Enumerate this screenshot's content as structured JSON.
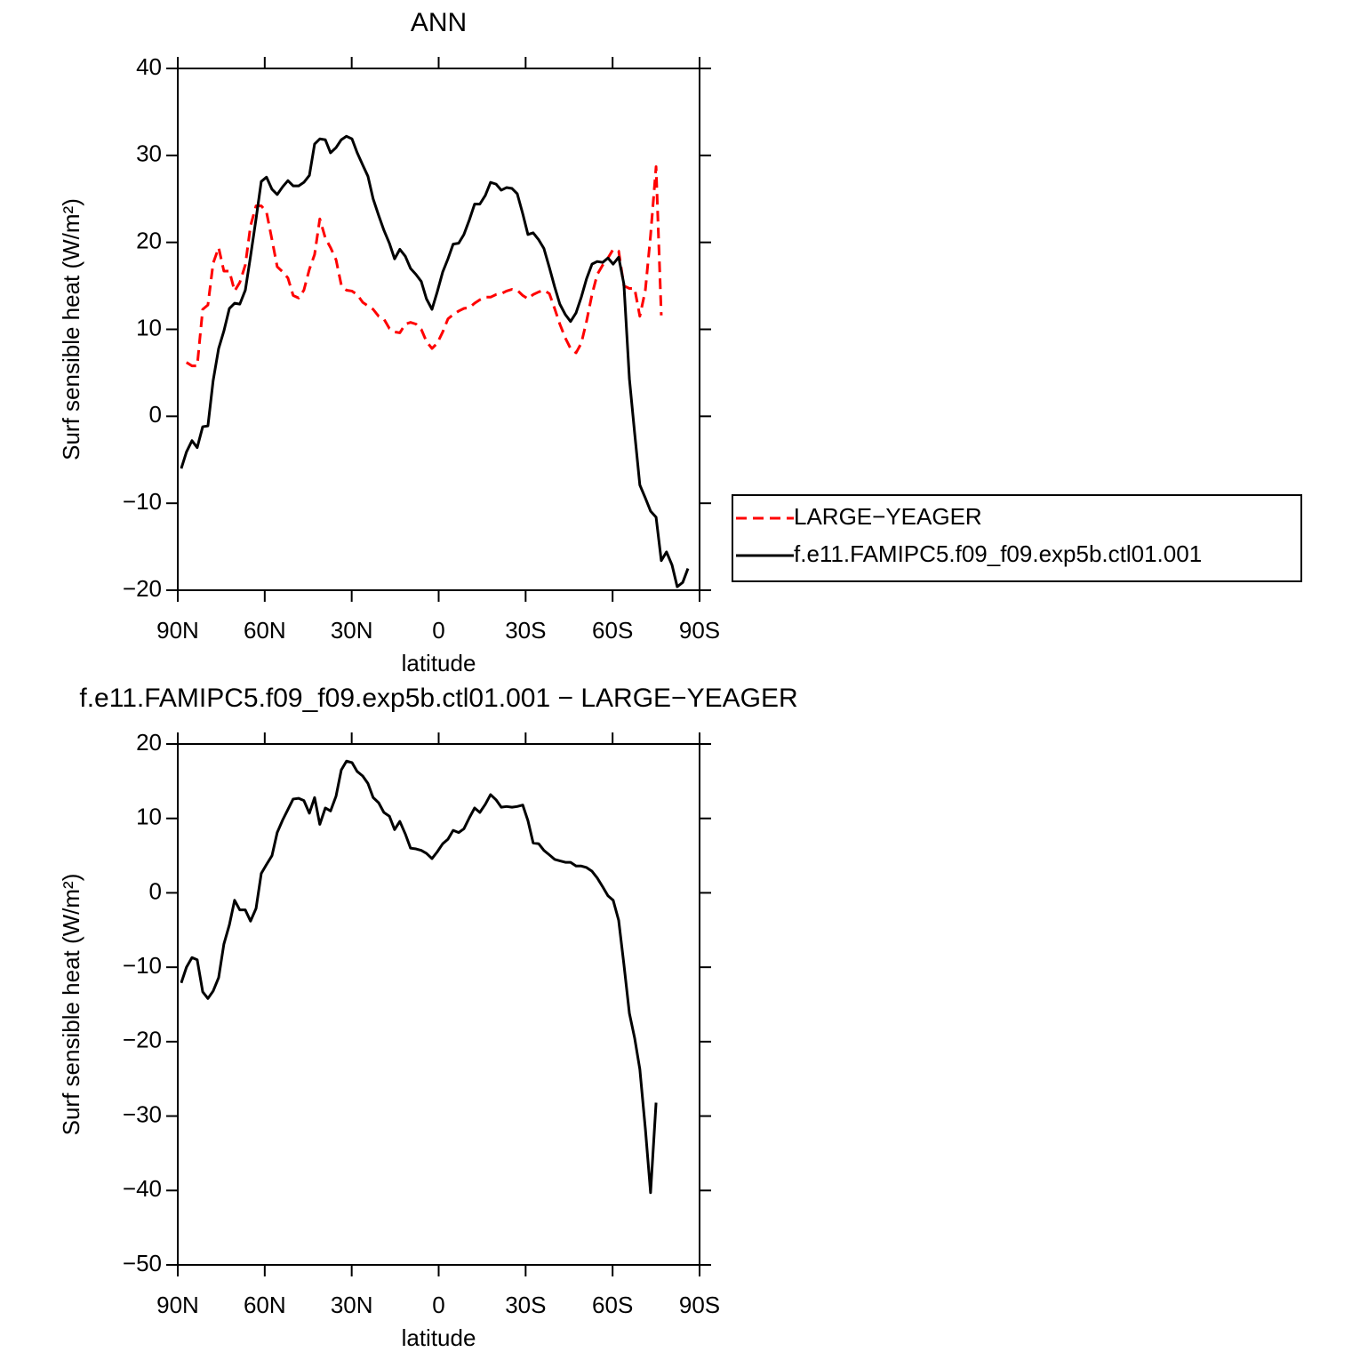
{
  "chart_data": [
    {
      "type": "line",
      "title": "ANN",
      "xlabel": "latitude",
      "ylabel": "Surf sensible heat (W/m²)",
      "legend": "right",
      "xlim": [
        90,
        -90
      ],
      "xticks": [
        {
          "value": 90,
          "label": "90N"
        },
        {
          "value": 60,
          "label": "60N"
        },
        {
          "value": 30,
          "label": "30N"
        },
        0,
        {
          "value": -30,
          "label": "30S"
        },
        {
          "value": -60,
          "label": "60S"
        },
        {
          "value": -90,
          "label": "90S"
        }
      ],
      "ylim": [
        -20,
        40
      ],
      "yticks": [
        40,
        30,
        20,
        10,
        0,
        {
          "value": -10,
          "label": "−10"
        },
        {
          "value": -20,
          "label": "−20"
        }
      ],
      "x": [
        88.8,
        87.0,
        85.1,
        83.3,
        81.4,
        79.6,
        77.8,
        75.9,
        74.1,
        72.2,
        70.4,
        68.6,
        66.7,
        64.9,
        63.0,
        61.2,
        59.4,
        57.5,
        55.7,
        53.8,
        52.0,
        50.2,
        48.3,
        46.5,
        44.6,
        42.8,
        41.0,
        39.1,
        37.3,
        35.4,
        33.6,
        31.8,
        29.9,
        28.1,
        26.2,
        24.4,
        22.6,
        20.7,
        18.9,
        17.0,
        15.2,
        13.4,
        11.5,
        9.7,
        7.8,
        6.0,
        4.2,
        2.3,
        0.5,
        -1.4,
        -3.2,
        -5.0,
        -6.9,
        -8.7,
        -10.6,
        -12.4,
        -14.2,
        -16.1,
        -17.9,
        -19.8,
        -21.6,
        -23.4,
        -25.3,
        -27.1,
        -29.0,
        -30.8,
        -32.6,
        -34.5,
        -36.3,
        -38.2,
        -40.0,
        -41.8,
        -43.7,
        -45.5,
        -47.4,
        -49.2,
        -51.0,
        -52.9,
        -54.7,
        -56.6,
        -58.4,
        -60.2,
        -62.1,
        -63.9,
        -65.8,
        -67.6,
        -69.4,
        -71.3,
        -73.1,
        -75.0,
        -76.8,
        -78.6,
        -80.5,
        -82.3,
        -84.2,
        -86.0
      ],
      "series": [
        {
          "name": "LARGE−YEAGER",
          "color": "#ff0000",
          "line_style": "dashed",
          "values": [
            null,
            6.2,
            5.8,
            5.8,
            12.3,
            12.8,
            17.6,
            19.4,
            16.7,
            16.7,
            14.4,
            15.4,
            17.4,
            21.9,
            24.2,
            24.2,
            23.5,
            20.3,
            17.2,
            16.6,
            15.9,
            13.9,
            13.6,
            14.5,
            16.9,
            18.6,
            22.7,
            20.5,
            19.4,
            18.0,
            15.1,
            14.5,
            14.4,
            14.0,
            13.1,
            12.7,
            12.3,
            11.5,
            11.2,
            10.1,
            9.7,
            9.6,
            10.6,
            10.8,
            10.6,
            10.0,
            8.6,
            7.8,
            8.4,
            9.7,
            11.2,
            11.7,
            12.1,
            12.4,
            12.5,
            13.0,
            13.4,
            13.7,
            13.7,
            14.0,
            14.1,
            14.4,
            14.6,
            14.5,
            13.9,
            13.5,
            14.0,
            14.3,
            14.5,
            14.1,
            12.4,
            10.6,
            9.0,
            7.8,
            7.3,
            8.4,
            10.9,
            14.0,
            16.3,
            17.4,
            18.2,
            19.2,
            19.0,
            15.0,
            14.7,
            14.7,
            11.5,
            14.5,
            20.8,
            28.7,
            11.6,
            null,
            null,
            null,
            null,
            null
          ]
        },
        {
          "name": "f.e11.FAMIPC5.f09_f09.exp5b.ctl01.001",
          "color": "#000000",
          "line_style": "solid",
          "values": [
            -6.0,
            -4.1,
            -2.8,
            -3.6,
            -1.2,
            -1.1,
            4.1,
            7.8,
            9.8,
            12.4,
            13.0,
            12.9,
            14.5,
            18.4,
            22.7,
            27.0,
            27.5,
            26.1,
            25.5,
            26.4,
            27.1,
            26.5,
            26.5,
            26.9,
            27.7,
            31.3,
            31.9,
            31.8,
            30.3,
            30.9,
            31.8,
            32.2,
            31.9,
            30.3,
            28.9,
            27.6,
            25.0,
            23.1,
            21.4,
            19.9,
            18.1,
            19.2,
            18.4,
            17.0,
            16.3,
            15.5,
            13.5,
            12.3,
            14.3,
            16.6,
            18.1,
            19.8,
            19.9,
            20.9,
            22.6,
            24.4,
            24.4,
            25.4,
            26.9,
            26.7,
            26.0,
            26.3,
            26.2,
            25.6,
            23.3,
            20.9,
            21.1,
            20.3,
            19.3,
            17.1,
            14.9,
            12.9,
            11.7,
            10.9,
            11.9,
            13.7,
            15.8,
            17.5,
            17.8,
            17.7,
            18.2,
            17.5,
            18.3,
            15.2,
            4.3,
            -1.9,
            -7.9,
            -9.4,
            -10.9,
            -11.6,
            -16.6,
            -15.6,
            -17.1,
            -19.6,
            -19.1,
            -17.5
          ]
        }
      ]
    },
    {
      "type": "line",
      "title": "f.e11.FAMIPC5.f09_f09.exp5b.ctl01.001 − LARGE−YEAGER",
      "xlabel": "latitude",
      "ylabel": "Surf sensible heat (W/m²)",
      "xlim": [
        90,
        -90
      ],
      "xticks": [
        {
          "value": 90,
          "label": "90N"
        },
        {
          "value": 60,
          "label": "60N"
        },
        {
          "value": 30,
          "label": "30N"
        },
        0,
        {
          "value": -30,
          "label": "30S"
        },
        {
          "value": -60,
          "label": "60S"
        },
        {
          "value": -90,
          "label": "90S"
        }
      ],
      "ylim": [
        -50,
        20
      ],
      "yticks": [
        20,
        10,
        0,
        {
          "value": -10,
          "label": "−10"
        },
        {
          "value": -20,
          "label": "−20"
        },
        {
          "value": -30,
          "label": "−30"
        },
        {
          "value": -40,
          "label": "−40"
        },
        {
          "value": -50,
          "label": "−50"
        }
      ],
      "x": [
        88.8,
        87.0,
        85.1,
        83.3,
        81.4,
        79.6,
        77.8,
        75.9,
        74.1,
        72.2,
        70.4,
        68.6,
        66.7,
        64.9,
        63.0,
        61.2,
        59.4,
        57.5,
        55.7,
        53.8,
        52.0,
        50.2,
        48.3,
        46.5,
        44.6,
        42.8,
        41.0,
        39.1,
        37.3,
        35.4,
        33.6,
        31.8,
        29.9,
        28.1,
        26.2,
        24.4,
        22.6,
        20.7,
        18.9,
        17.0,
        15.2,
        13.4,
        11.5,
        9.7,
        7.8,
        6.0,
        4.2,
        2.3,
        0.5,
        -1.4,
        -3.2,
        -5.0,
        -6.9,
        -8.7,
        -10.6,
        -12.4,
        -14.2,
        -16.1,
        -17.9,
        -19.8,
        -21.6,
        -23.4,
        -25.3,
        -27.1,
        -29.0,
        -30.8,
        -32.6,
        -34.5,
        -36.3,
        -38.2,
        -40.0,
        -41.8,
        -43.7,
        -45.5,
        -47.4,
        -49.2,
        -51.0,
        -52.9,
        -54.7,
        -56.6,
        -58.4,
        -60.2,
        -62.1,
        -63.9,
        -65.8,
        -67.6,
        -69.4,
        -71.3,
        -73.1,
        -75.0,
        -76.8,
        -78.6,
        -80.5,
        -82.3,
        -84.2,
        -86.0
      ],
      "series": [
        {
          "color": "#000000",
          "line_style": "solid",
          "values": [
            -12.1,
            -10.0,
            -8.7,
            -9.0,
            -13.3,
            -14.2,
            -13.2,
            -11.4,
            -6.9,
            -4.3,
            -1.0,
            -2.3,
            -2.3,
            -3.8,
            -2.1,
            2.6,
            3.8,
            5.0,
            8.1,
            9.8,
            11.2,
            12.6,
            12.7,
            12.4,
            10.7,
            12.8,
            9.2,
            11.4,
            11.0,
            13.0,
            16.5,
            17.7,
            17.5,
            16.3,
            15.7,
            14.7,
            12.8,
            12.1,
            10.8,
            10.3,
            8.5,
            9.6,
            7.9,
            6.0,
            5.9,
            5.7,
            5.3,
            4.6,
            5.5,
            6.6,
            7.2,
            8.4,
            8.1,
            8.6,
            10.1,
            11.4,
            10.8,
            11.9,
            13.2,
            12.5,
            11.5,
            11.6,
            11.5,
            11.6,
            11.8,
            9.7,
            6.7,
            6.6,
            5.7,
            5.1,
            4.5,
            4.3,
            4.1,
            4.1,
            3.6,
            3.6,
            3.4,
            2.9,
            2.0,
            0.8,
            -0.4,
            -1.0,
            -3.7,
            -9.6,
            -16.2,
            -19.5,
            -23.7,
            -31.7,
            -40.3,
            -28.2,
            null,
            null,
            null,
            null,
            null,
            null
          ]
        }
      ]
    }
  ]
}
